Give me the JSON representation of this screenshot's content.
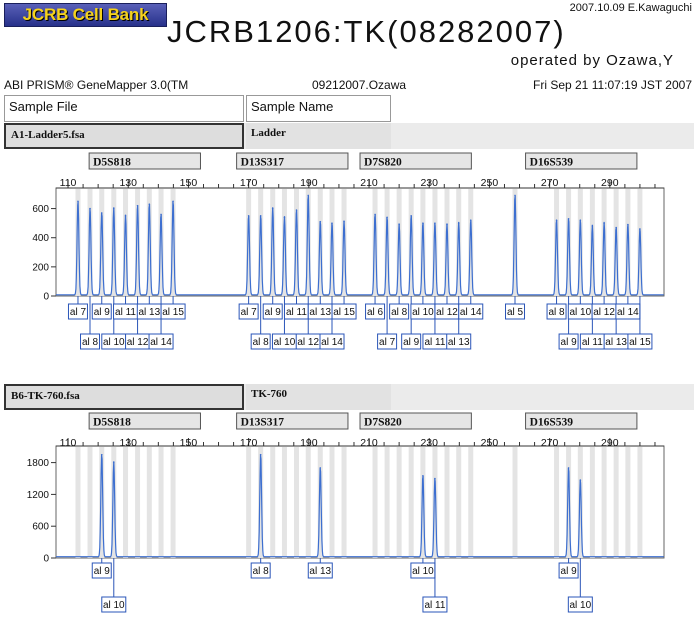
{
  "header": {
    "logo_text": "JCRB Cell Bank",
    "date_author": "2007.10.09 E.Kawaguchi",
    "title": "JCRB1206:TK(08282007)",
    "operator": "operated by Ozawa,Y",
    "software": "ABI PRISM® GeneMapper 3.0(TM",
    "run_name": "09212007.Ozawa",
    "timestamp": "Fri Sep 21 11:07:19 JST 2007"
  },
  "table": {
    "sample_file_label": "Sample File",
    "sample_name_label": "Sample Name"
  },
  "colors": {
    "trace": "#3d6fd0",
    "bin": "#e4e4e4",
    "label_box": "#2a55b8",
    "logo_bg": "#3a43a0",
    "logo_text": "#f5d21c"
  },
  "chart_data": [
    {
      "type": "line",
      "sample_file": "A1-Ladder5.fsa",
      "sample_name": "Ladder",
      "x_ticks": [
        110,
        130,
        150,
        170,
        190,
        210,
        230,
        250,
        270,
        290
      ],
      "y_ticks": [
        0,
        200,
        400,
        600
      ],
      "xlim": [
        106,
        308
      ],
      "ylim": [
        0,
        700
      ],
      "markers": [
        {
          "name": "D5S818",
          "range": [
            119,
            154
          ]
        },
        {
          "name": "D13S317",
          "range": [
            168,
            203
          ]
        },
        {
          "name": "D7S820",
          "range": [
            209,
            244
          ]
        },
        {
          "name": "D16S539",
          "range": [
            264,
            299
          ]
        }
      ],
      "peaks": [
        {
          "x": 113.3,
          "y": 650,
          "label": "al 7",
          "row": 1
        },
        {
          "x": 117.3,
          "y": 600,
          "label": "al 8",
          "row": 2
        },
        {
          "x": 121.2,
          "y": 570,
          "label": "al 9",
          "row": 1
        },
        {
          "x": 125.2,
          "y": 600,
          "label": "al 10",
          "row": 2
        },
        {
          "x": 129.1,
          "y": 550,
          "label": "al 11",
          "row": 1
        },
        {
          "x": 133.1,
          "y": 620,
          "label": "al 12",
          "row": 2
        },
        {
          "x": 137.0,
          "y": 630,
          "label": "al 13",
          "row": 1
        },
        {
          "x": 140.9,
          "y": 560,
          "label": "al 14",
          "row": 2
        },
        {
          "x": 144.9,
          "y": 650,
          "label": "al 15",
          "row": 1
        },
        {
          "x": 170.0,
          "y": 550,
          "label": "al 7",
          "row": 1
        },
        {
          "x": 174.0,
          "y": 550,
          "label": "al 8",
          "row": 2
        },
        {
          "x": 178.0,
          "y": 600,
          "label": "al 9",
          "row": 1
        },
        {
          "x": 181.9,
          "y": 540,
          "label": "al 10",
          "row": 2
        },
        {
          "x": 185.9,
          "y": 590,
          "label": "al 11",
          "row": 1
        },
        {
          "x": 189.8,
          "y": 690,
          "label": "al 12",
          "row": 2
        },
        {
          "x": 193.8,
          "y": 510,
          "label": "al 13",
          "row": 1
        },
        {
          "x": 197.7,
          "y": 500,
          "label": "al 14",
          "row": 2
        },
        {
          "x": 201.7,
          "y": 510,
          "label": "al 15",
          "row": 1
        },
        {
          "x": 212.0,
          "y": 560,
          "label": "al 6",
          "row": 1
        },
        {
          "x": 216.0,
          "y": 540,
          "label": "al 7",
          "row": 2
        },
        {
          "x": 220.0,
          "y": 490,
          "label": "al 8",
          "row": 1
        },
        {
          "x": 224.0,
          "y": 550,
          "label": "al 9",
          "row": 2
        },
        {
          "x": 227.9,
          "y": 500,
          "label": "al 10",
          "row": 1
        },
        {
          "x": 231.9,
          "y": 500,
          "label": "al 11",
          "row": 2
        },
        {
          "x": 235.9,
          "y": 490,
          "label": "al 12",
          "row": 1
        },
        {
          "x": 239.8,
          "y": 500,
          "label": "al 13",
          "row": 2
        },
        {
          "x": 243.8,
          "y": 520,
          "label": "al 14",
          "row": 1
        },
        {
          "x": 258.5,
          "y": 690,
          "label": "al 5",
          "row": 1
        },
        {
          "x": 272.3,
          "y": 520,
          "label": "al 8",
          "row": 1
        },
        {
          "x": 276.3,
          "y": 530,
          "label": "al 9",
          "row": 2
        },
        {
          "x": 280.2,
          "y": 520,
          "label": "al 10",
          "row": 1
        },
        {
          "x": 284.2,
          "y": 480,
          "label": "al 11",
          "row": 2
        },
        {
          "x": 288.1,
          "y": 500,
          "label": "al 12",
          "row": 1
        },
        {
          "x": 292.1,
          "y": 470,
          "label": "al 13",
          "row": 2
        },
        {
          "x": 296.0,
          "y": 490,
          "label": "al 14",
          "row": 1
        },
        {
          "x": 300.0,
          "y": 460,
          "label": "al 15",
          "row": 2
        }
      ]
    },
    {
      "type": "line",
      "sample_file": "B6-TK-760.fsa",
      "sample_name": "TK-760",
      "x_ticks": [
        110,
        130,
        150,
        170,
        190,
        210,
        230,
        250,
        270,
        290
      ],
      "y_ticks": [
        0,
        600,
        1200,
        1800
      ],
      "xlim": [
        106,
        308
      ],
      "ylim": [
        0,
        2000
      ],
      "markers": [
        {
          "name": "D5S818",
          "range": [
            119,
            154
          ]
        },
        {
          "name": "D13S317",
          "range": [
            168,
            203
          ]
        },
        {
          "name": "D7S820",
          "range": [
            209,
            244
          ]
        },
        {
          "name": "D16S539",
          "range": [
            264,
            299
          ]
        }
      ],
      "peaks": [
        {
          "x": 121.2,
          "y": 1950,
          "label": "al 9",
          "row": 1
        },
        {
          "x": 125.2,
          "y": 1800,
          "label": "al 10",
          "row": 2
        },
        {
          "x": 174.0,
          "y": 1950,
          "label": "al 8",
          "row": 1
        },
        {
          "x": 193.8,
          "y": 1700,
          "label": "al 13",
          "row": 1
        },
        {
          "x": 227.9,
          "y": 1550,
          "label": "al 10",
          "row": 1
        },
        {
          "x": 231.9,
          "y": 1500,
          "label": "al 11",
          "row": 2
        },
        {
          "x": 276.3,
          "y": 1700,
          "label": "al 9",
          "row": 1
        },
        {
          "x": 280.2,
          "y": 1470,
          "label": "al 10",
          "row": 2
        }
      ]
    }
  ]
}
